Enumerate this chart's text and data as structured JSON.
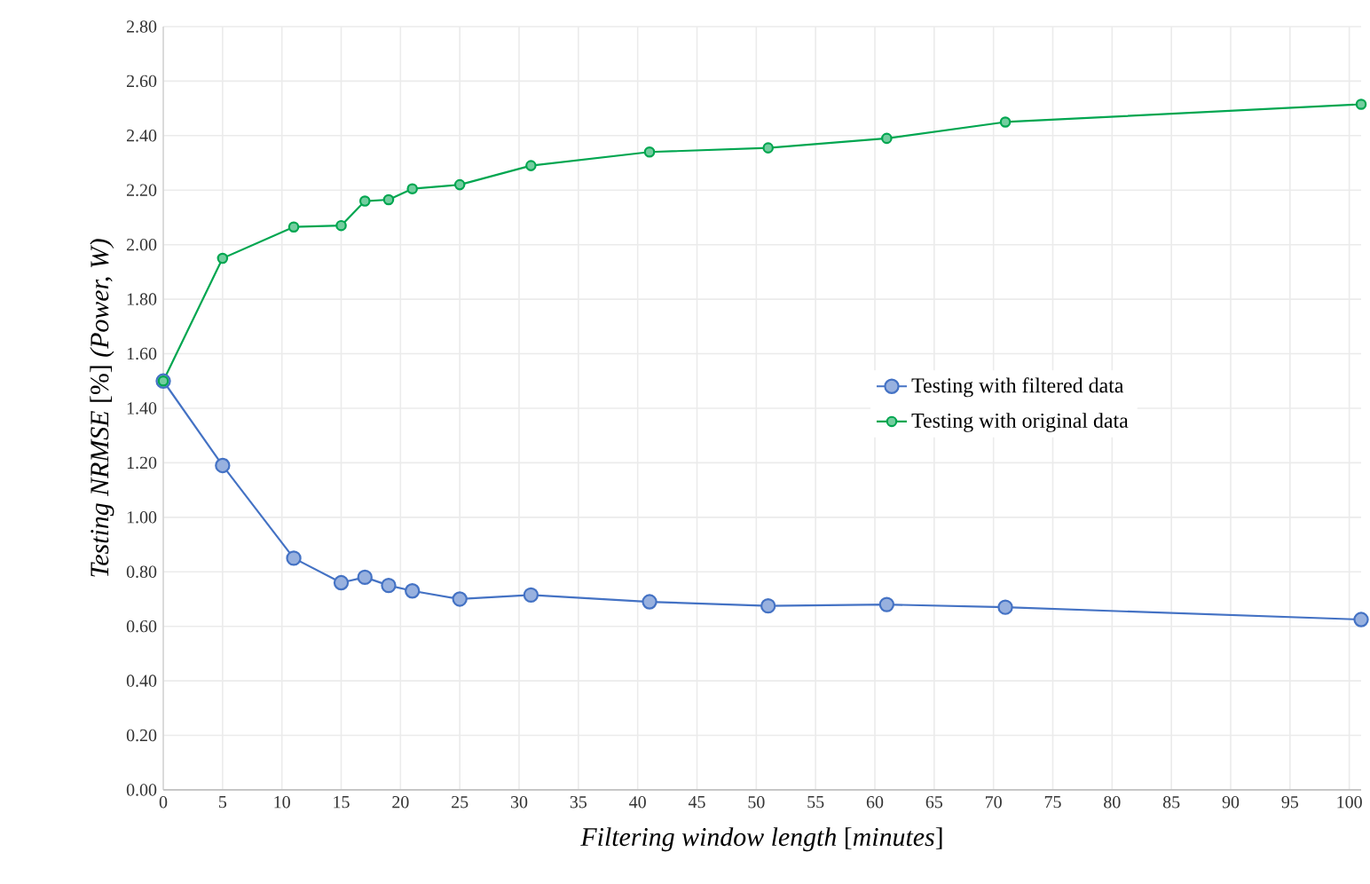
{
  "chart_data": {
    "type": "line",
    "xlabel": "*Filtering window length* [*minutes*]",
    "ylabel": "*Testing NRMSE* [%] *(Power, W)*",
    "x": [
      0,
      5,
      11,
      15,
      17,
      19,
      21,
      25,
      31,
      41,
      51,
      61,
      71,
      101
    ],
    "series": [
      {
        "name": "Testing with filtered data",
        "color": "#4472c4",
        "values": [
          1.5,
          1.19,
          0.85,
          0.76,
          0.78,
          0.75,
          0.73,
          0.7,
          0.715,
          0.69,
          0.675,
          0.68,
          0.67,
          0.625
        ]
      },
      {
        "name": "Testing with original data",
        "color": "#00a650",
        "values": [
          1.5,
          1.95,
          2.065,
          2.07,
          2.16,
          2.165,
          2.205,
          2.22,
          2.29,
          2.34,
          2.355,
          2.39,
          2.45,
          2.515
        ]
      }
    ],
    "xlim": [
      0,
      101
    ],
    "ylim": [
      0,
      2.8
    ],
    "xticks": [
      0,
      5,
      10,
      15,
      20,
      25,
      30,
      35,
      40,
      45,
      50,
      55,
      60,
      65,
      70,
      75,
      80,
      85,
      90,
      95,
      100
    ],
    "yticks": [
      {
        "value": 0,
        "label": "0.00"
      },
      {
        "value": 0.2,
        "label": "0.20"
      },
      {
        "value": 0.4,
        "label": "0.40"
      },
      {
        "value": 0.6,
        "label": "0.60"
      },
      {
        "value": 0.8,
        "label": "0.80"
      },
      {
        "value": 1.0,
        "label": "1.00"
      },
      {
        "value": 1.2,
        "label": "1.20"
      },
      {
        "value": 1.4,
        "label": "1.40"
      },
      {
        "value": 1.6,
        "label": "1.60"
      },
      {
        "value": 1.8,
        "label": "1.80"
      },
      {
        "value": 2.0,
        "label": "2.00"
      },
      {
        "value": 2.2,
        "label": "2.20"
      },
      {
        "value": 2.4,
        "label": "2.40"
      },
      {
        "value": 2.6,
        "label": "2.60"
      },
      {
        "value": 2.8,
        "label": "2.80"
      }
    ],
    "grid": true,
    "legend": "right",
    "marker": "circle",
    "line_style": "solid"
  }
}
